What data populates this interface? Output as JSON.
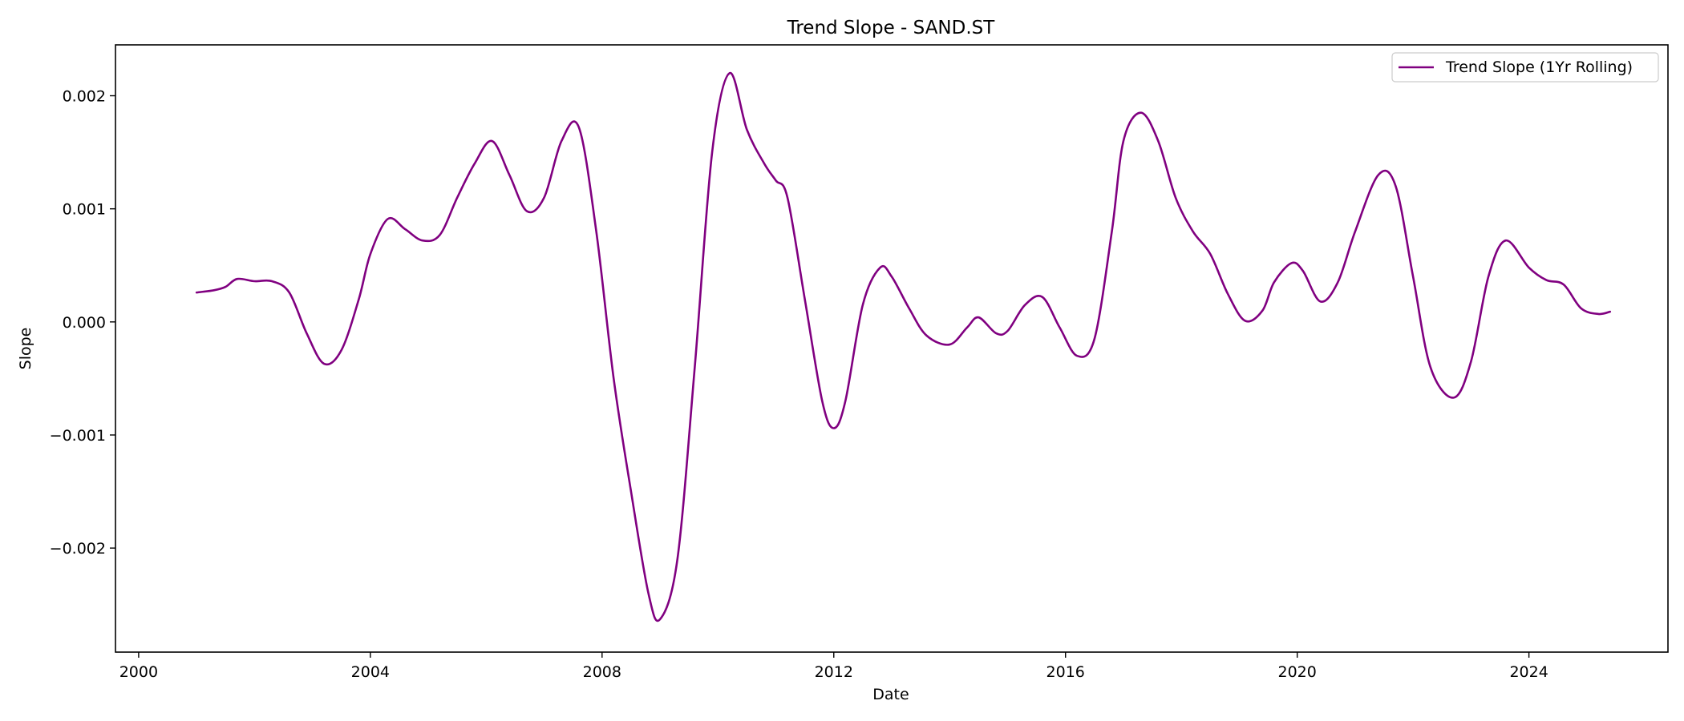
{
  "chart_data": {
    "type": "line",
    "title": "Trend Slope - SAND.ST",
    "xlabel": "Date",
    "ylabel": "Slope",
    "xlim": [
      1999.6,
      2026.4
    ],
    "ylim": [
      -0.00292,
      0.00245
    ],
    "x_ticks": [
      2000,
      2004,
      2008,
      2012,
      2016,
      2020,
      2024
    ],
    "x_tick_labels": [
      "2000",
      "2004",
      "2008",
      "2012",
      "2016",
      "2020",
      "2024"
    ],
    "y_ticks": [
      -0.002,
      -0.001,
      0.0,
      0.001,
      0.002
    ],
    "y_tick_labels": [
      "−0.002",
      "−0.001",
      "0.000",
      "0.001",
      "0.002"
    ],
    "grid": false,
    "legend_position": "top-right",
    "series": [
      {
        "name": "Trend Slope (1Yr Rolling)",
        "color": "#800080",
        "x": [
          2001.0,
          2001.3,
          2001.5,
          2001.7,
          2002.0,
          2002.3,
          2002.6,
          2002.9,
          2003.2,
          2003.5,
          2003.8,
          2004.0,
          2004.3,
          2004.6,
          2004.9,
          2005.2,
          2005.5,
          2005.8,
          2006.1,
          2006.4,
          2006.7,
          2007.0,
          2007.3,
          2007.6,
          2007.9,
          2008.2,
          2008.5,
          2008.8,
          2009.0,
          2009.3,
          2009.6,
          2009.9,
          2010.2,
          2010.5,
          2010.8,
          2011.0,
          2011.2,
          2011.5,
          2011.8,
          2012.0,
          2012.2,
          2012.5,
          2012.8,
          2013.0,
          2013.3,
          2013.6,
          2014.0,
          2014.3,
          2014.5,
          2014.8,
          2015.0,
          2015.3,
          2015.6,
          2015.9,
          2016.2,
          2016.5,
          2016.8,
          2017.0,
          2017.3,
          2017.6,
          2017.9,
          2018.2,
          2018.5,
          2018.8,
          2019.1,
          2019.4,
          2019.6,
          2019.9,
          2020.1,
          2020.4,
          2020.7,
          2021.0,
          2021.4,
          2021.7,
          2022.0,
          2022.3,
          2022.7,
          2023.0,
          2023.3,
          2023.6,
          2024.0,
          2024.3,
          2024.6,
          2024.9,
          2025.2,
          2025.4
        ],
        "y": [
          0.00026,
          0.00028,
          0.00031,
          0.00038,
          0.00036,
          0.00036,
          0.00026,
          -0.0001,
          -0.00037,
          -0.00025,
          0.0002,
          0.0006,
          0.00091,
          0.00082,
          0.00072,
          0.00077,
          0.0011,
          0.0014,
          0.0016,
          0.0013,
          0.00098,
          0.0011,
          0.0016,
          0.00172,
          0.0008,
          -0.0005,
          -0.0015,
          -0.0024,
          -0.00263,
          -0.0021,
          -0.0004,
          0.0015,
          0.0022,
          0.0017,
          0.0014,
          0.00125,
          0.0011,
          0.0002,
          -0.0007,
          -0.00094,
          -0.0007,
          0.00015,
          0.00048,
          0.0004,
          0.00012,
          -0.00012,
          -0.0002,
          -5e-05,
          4e-05,
          -0.0001,
          -8e-05,
          0.00015,
          0.00022,
          -5e-05,
          -0.0003,
          -0.00015,
          0.0008,
          0.0016,
          0.00185,
          0.0016,
          0.0011,
          0.0008,
          0.0006,
          0.00025,
          1e-05,
          0.0001,
          0.00035,
          0.00052,
          0.00045,
          0.00018,
          0.00035,
          0.0008,
          0.0013,
          0.0012,
          0.0004,
          -0.0004,
          -0.00067,
          -0.00035,
          0.0004,
          0.00072,
          0.00048,
          0.00037,
          0.00033,
          0.00012,
          7e-05,
          9e-05
        ]
      }
    ]
  }
}
